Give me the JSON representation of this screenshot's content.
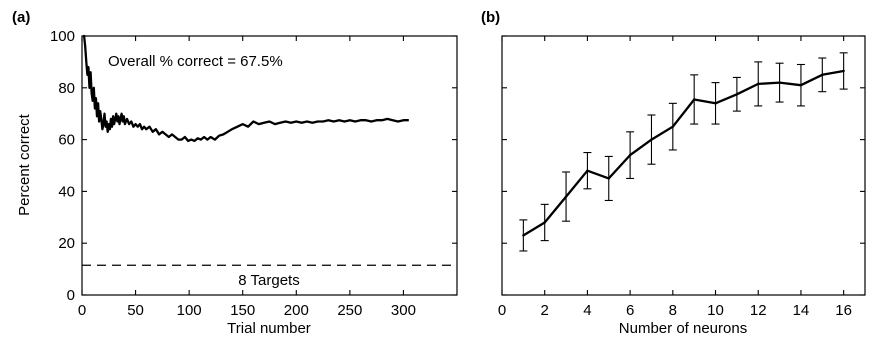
{
  "chart_data": [
    {
      "panel": "(a)",
      "type": "line",
      "title": "",
      "xlabel": "Trial number",
      "ylabel": "Percent correct",
      "xlim": [
        0,
        350
      ],
      "ylim": [
        0,
        100
      ],
      "xticks": [
        0,
        50,
        100,
        150,
        200,
        250,
        300
      ],
      "yticks": [
        0,
        20,
        40,
        60,
        80,
        100
      ],
      "grid": false,
      "annotation": "Overall % correct = 67.5%",
      "reference_line": {
        "y": 11.5,
        "style": "dashed",
        "label": "8 Targets"
      },
      "series": [
        {
          "x": [
            1,
            2,
            3,
            4,
            5,
            6,
            7,
            8,
            9,
            10,
            11,
            12,
            13,
            14,
            15,
            16,
            17,
            18,
            19,
            20,
            21,
            22,
            23,
            24,
            25,
            26,
            27,
            28,
            29,
            30,
            31,
            32,
            33,
            34,
            35,
            36,
            37,
            38,
            39,
            40,
            42,
            44,
            46,
            48,
            50,
            52,
            54,
            56,
            58,
            60,
            63,
            66,
            69,
            72,
            75,
            78,
            81,
            84,
            87,
            90,
            93,
            96,
            99,
            102,
            105,
            108,
            111,
            114,
            117,
            120,
            124,
            128,
            132,
            136,
            140,
            145,
            150,
            155,
            160,
            165,
            170,
            175,
            180,
            185,
            190,
            195,
            200,
            205,
            210,
            215,
            220,
            225,
            230,
            235,
            240,
            245,
            250,
            255,
            260,
            265,
            270,
            275,
            280,
            285,
            290,
            295,
            300,
            305
          ],
          "y": [
            100,
            100,
            96,
            90,
            85,
            88,
            80,
            86,
            78,
            75,
            80,
            72,
            76,
            69,
            74,
            67,
            71,
            68,
            64,
            66,
            70,
            65,
            67,
            63,
            66,
            64,
            68,
            65,
            69,
            66,
            68,
            70,
            67,
            69,
            66,
            68,
            70,
            67,
            69,
            66,
            68,
            66,
            67,
            65,
            66,
            65,
            66,
            64,
            65,
            64,
            65,
            63,
            64,
            62,
            63,
            62,
            61,
            62,
            61,
            60,
            60,
            61,
            59.5,
            60,
            59.5,
            60.5,
            60,
            61,
            60,
            61,
            60,
            61.5,
            62,
            63,
            64,
            65,
            66,
            65,
            67,
            66,
            66.5,
            67,
            66,
            66.5,
            67,
            66.5,
            67,
            66.5,
            67,
            66.5,
            67,
            67,
            67.5,
            67,
            67.5,
            67,
            67.5,
            67,
            67.5,
            67.5,
            67,
            67.5,
            67.5,
            68,
            67.5,
            67,
            67.5,
            67.5
          ]
        }
      ]
    },
    {
      "panel": "(b)",
      "type": "line",
      "title": "",
      "xlabel": "Number of neurons",
      "ylabel": "",
      "xlim": [
        0,
        17
      ],
      "ylim": [
        0,
        100
      ],
      "xticks": [
        0,
        2,
        4,
        6,
        8,
        10,
        12,
        14,
        16
      ],
      "grid": false,
      "series": [
        {
          "x": [
            1,
            2,
            3,
            4,
            5,
            6,
            7,
            8,
            9,
            10,
            11,
            12,
            13,
            14,
            15,
            16
          ],
          "y": [
            23,
            28,
            38,
            48,
            45,
            54,
            60,
            65,
            75.5,
            74,
            77.5,
            81.5,
            82,
            81,
            85,
            86.5
          ],
          "error": [
            6,
            7,
            9.5,
            7,
            8.5,
            9,
            9.5,
            9,
            9.5,
            8,
            6.5,
            8.5,
            7.5,
            8,
            6.5,
            7
          ]
        }
      ]
    }
  ]
}
